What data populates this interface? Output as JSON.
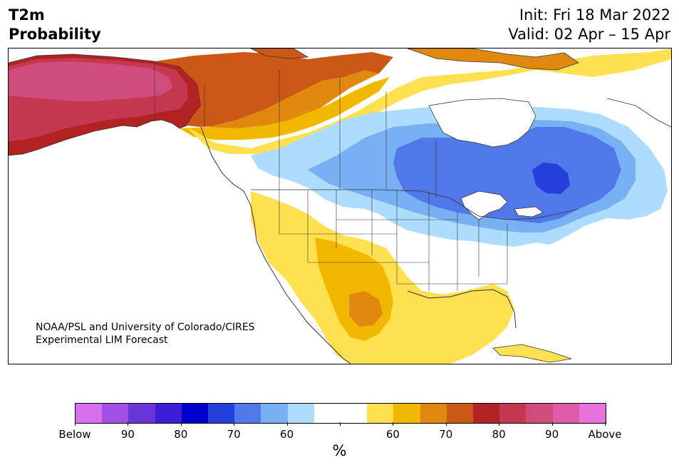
{
  "title": {
    "left_line1": "T2m",
    "left_line2": "Probability",
    "right_line1": "Init: Fri 18 Mar 2022",
    "right_line2": "Valid: 02 Apr – 15 Apr"
  },
  "credit": {
    "line1": "NOAA/PSL and University of Colorado/CIRES",
    "line2": "Experimental LIM Forecast"
  },
  "colorbar": {
    "colors": [
      "#d670ec",
      "#a050e4",
      "#6a36d8",
      "#3a1fd6",
      "#0000cd",
      "#2440dc",
      "#5078e8",
      "#78b0f4",
      "#aedcfc",
      "#ffffff",
      "#ffffff",
      "#ffe050",
      "#f2b800",
      "#e08810",
      "#cc5818",
      "#b22222",
      "#c43850",
      "#d04c7c",
      "#dc5ca8",
      "#ea72dc"
    ],
    "labels": [
      "Below",
      "90",
      "80",
      "70",
      "60",
      "60",
      "70",
      "80",
      "90",
      "Above"
    ],
    "unit": "%"
  },
  "map": {
    "region": "North America",
    "palette": {
      "land": "#ffffff",
      "outline": "#333333",
      "light_blue": "#aedcfc",
      "mid_blue": "#78b0f4",
      "blue": "#5078e8",
      "deep_blue": "#2440dc",
      "yellow": "#ffe050",
      "gold": "#f2b800",
      "orange": "#e08810",
      "dark_orange": "#cc5818",
      "red": "#b22222",
      "crimson": "#c43850",
      "rose": "#d04c7c"
    }
  }
}
